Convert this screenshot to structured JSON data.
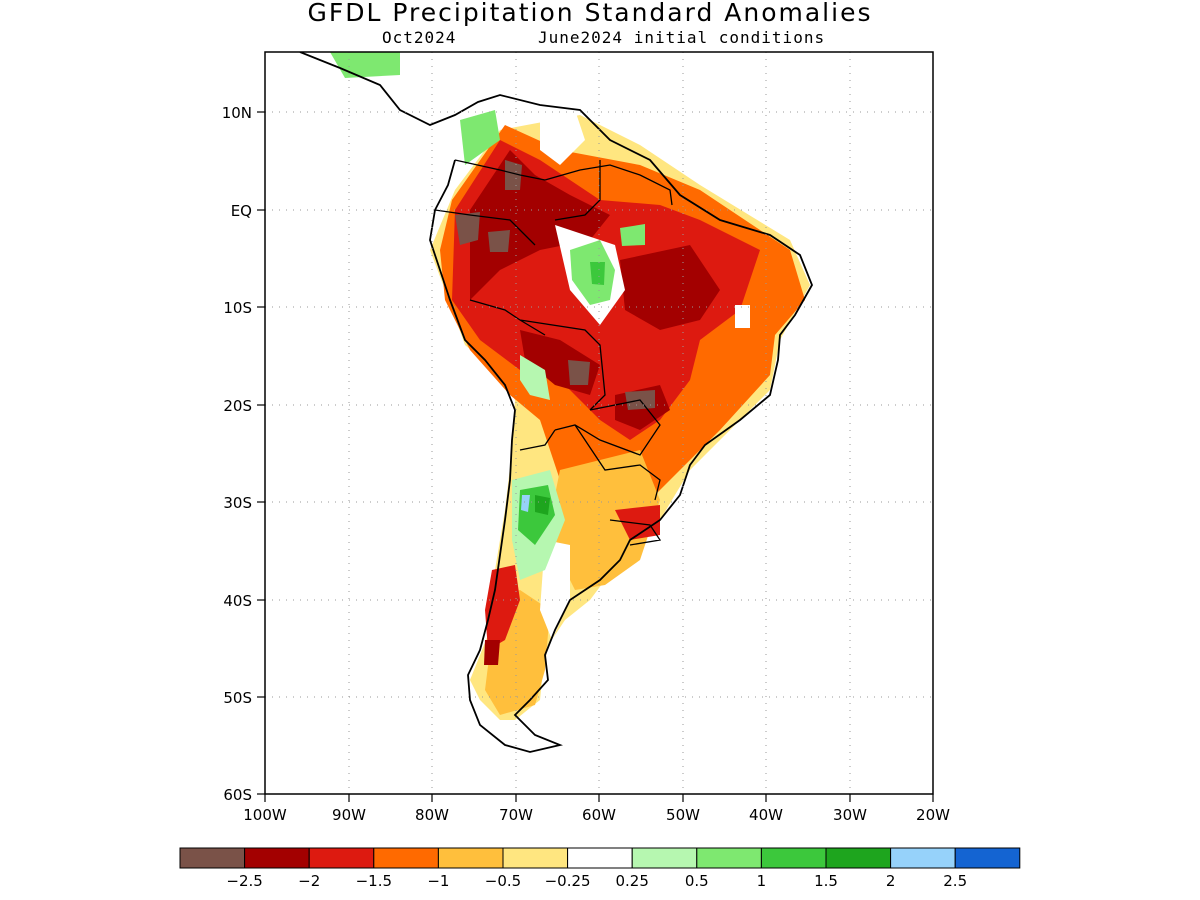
{
  "title": "GFDL Precipitation Standard Anomalies",
  "subtitle_left": "Oct2024",
  "subtitle_right": "June2024 initial conditions",
  "axes": {
    "lon_labels": [
      "100W",
      "90W",
      "80W",
      "70W",
      "60W",
      "50W",
      "40W",
      "30W",
      "20W"
    ],
    "lat_labels": [
      "10N",
      "EQ",
      "10S",
      "20S",
      "30S",
      "40S",
      "50S",
      "60S"
    ]
  },
  "colorbar": {
    "colors": [
      "#7a5248",
      "#a30000",
      "#dd1a10",
      "#ff6a00",
      "#ffbf3c",
      "#ffe680",
      "#ffffff",
      "#b6f7b0",
      "#7ee870",
      "#3cc83c",
      "#1ea51e",
      "#96d2fa",
      "#1464d2"
    ],
    "labels": [
      "-2.5",
      "-2",
      "-1.5",
      "-1",
      "-0.5",
      "-0.25",
      "0.25",
      "0.5",
      "1",
      "1.5",
      "2",
      "2.5"
    ]
  },
  "map": {
    "region": "South America",
    "lon_range": [
      -100,
      -20
    ],
    "lat_range": [
      -60,
      15
    ],
    "grid": "dotted"
  }
}
